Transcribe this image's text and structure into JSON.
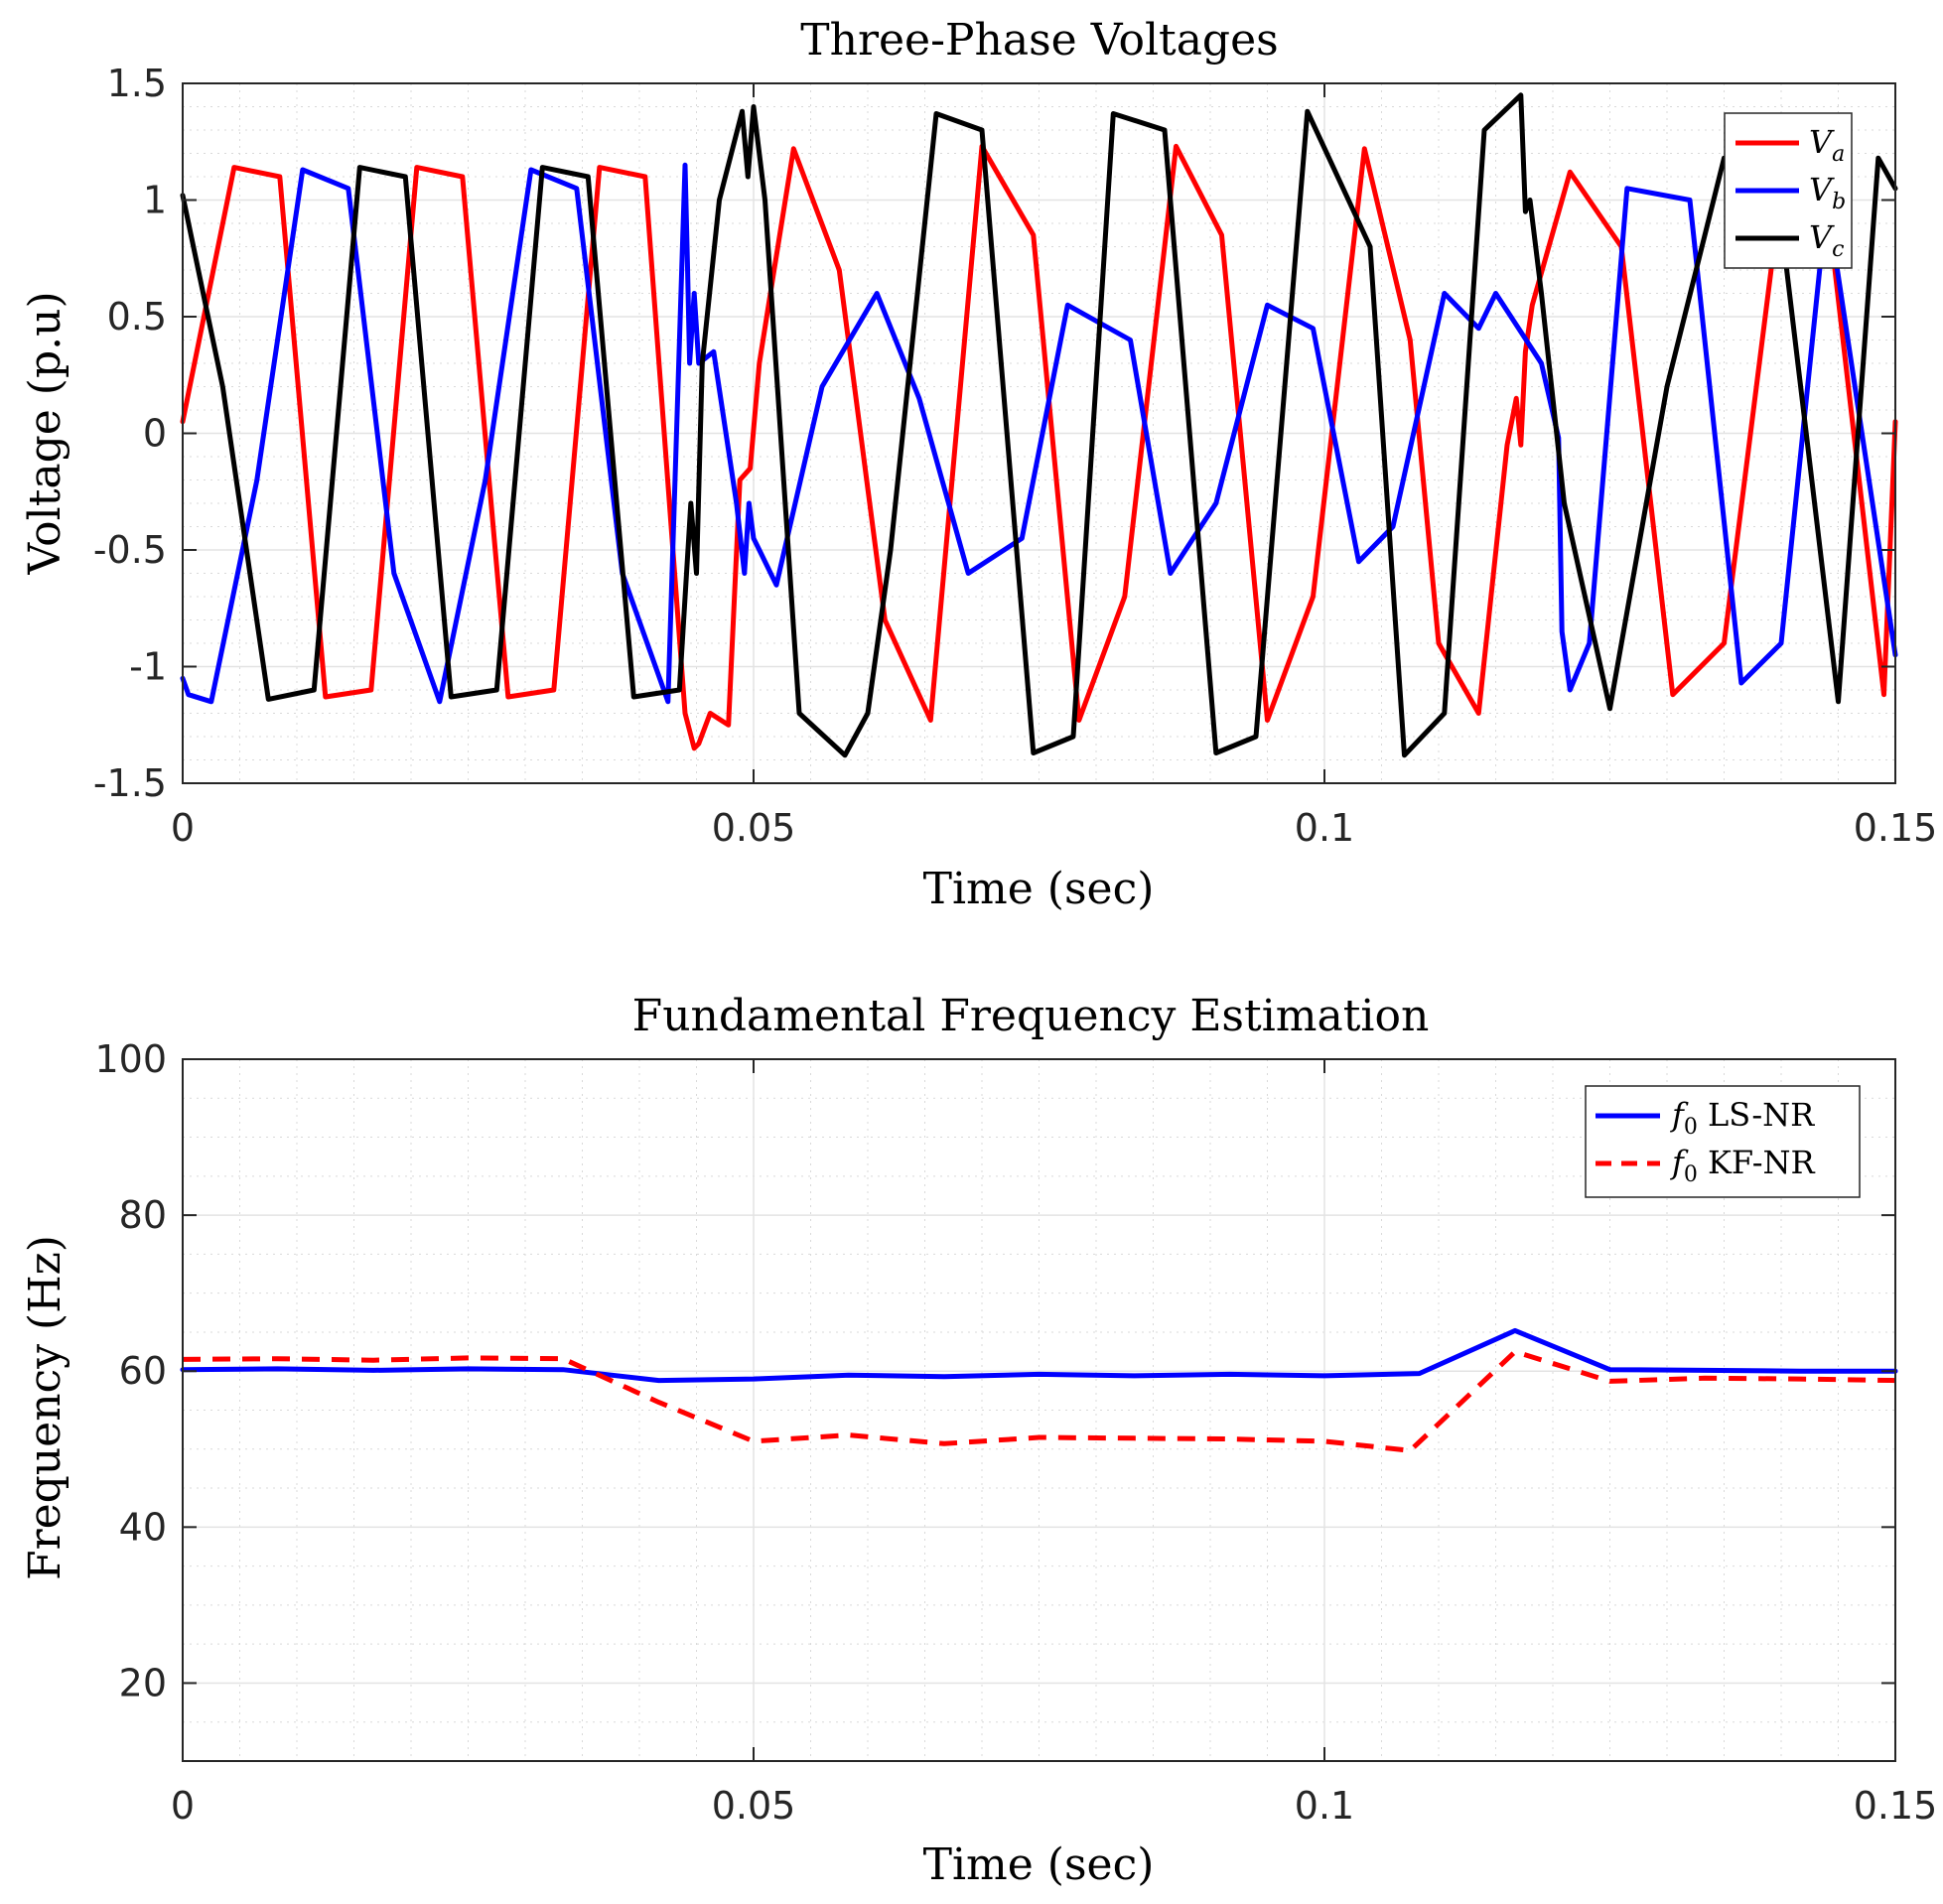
{
  "chart_data": [
    {
      "type": "line",
      "title": "Three-Phase Voltages",
      "xlabel": "Time (sec)",
      "ylabel": "Voltage (p.u)",
      "xlim": [
        0,
        0.15
      ],
      "ylim": [
        -1.5,
        1.5
      ],
      "xticks": [
        0,
        0.05,
        0.1,
        0.15
      ],
      "xtick_labels": [
        "0",
        "0.05",
        "0.1",
        "0.15"
      ],
      "yticks": [
        -1.5,
        -1,
        -0.5,
        0,
        0.5,
        1,
        1.5
      ],
      "ytick_labels": [
        "-1.5",
        "-1",
        "-0.5",
        "0",
        "0.5",
        "1",
        "1.5"
      ],
      "grid": true,
      "legend_position": "top-right",
      "series": [
        {
          "name": "V_a",
          "label_main": "V",
          "label_sub": "a",
          "color": "#ff0000",
          "style": "solid",
          "x": [
            0,
            0.0045,
            0.0085,
            0.0125,
            0.0165,
            0.0205,
            0.0245,
            0.0285,
            0.0325,
            0.0365,
            0.0405,
            0.044,
            0.0448,
            0.0452,
            0.0462,
            0.0478,
            0.0488,
            0.0497,
            0.0505,
            0.0518,
            0.0535,
            0.0575,
            0.0615,
            0.0655,
            0.07,
            0.0745,
            0.0785,
            0.0825,
            0.087,
            0.091,
            0.095,
            0.099,
            0.1035,
            0.1075,
            0.11,
            0.1135,
            0.116,
            0.1168,
            0.1172,
            0.1176,
            0.1182,
            0.1215,
            0.126,
            0.1305,
            0.135,
            0.1395,
            0.144,
            0.149,
            0.15
          ],
          "y": [
            0.05,
            1.14,
            1.1,
            -1.13,
            -1.1,
            1.14,
            1.1,
            -1.13,
            -1.1,
            1.14,
            1.1,
            -1.2,
            -1.35,
            -1.33,
            -1.2,
            -1.25,
            -0.2,
            -0.15,
            0.3,
            0.7,
            1.22,
            0.7,
            -0.8,
            -1.23,
            1.23,
            0.85,
            -1.23,
            -0.7,
            1.23,
            0.85,
            -1.23,
            -0.7,
            1.22,
            0.4,
            -0.9,
            -1.2,
            -0.05,
            0.15,
            -0.05,
            0.35,
            0.55,
            1.12,
            0.8,
            -1.12,
            -0.9,
            0.85,
            1.0,
            -1.12,
            0.05
          ]
        },
        {
          "name": "V_b",
          "label_main": "V",
          "label_sub": "b",
          "color": "#0000ff",
          "style": "solid",
          "x": [
            0,
            0.0005,
            0.0025,
            0.0065,
            0.0105,
            0.0145,
            0.0185,
            0.0225,
            0.0265,
            0.0305,
            0.0345,
            0.0385,
            0.0425,
            0.044,
            0.0442,
            0.0444,
            0.0448,
            0.0452,
            0.0465,
            0.0485,
            0.0492,
            0.0496,
            0.05,
            0.0505,
            0.052,
            0.056,
            0.0608,
            0.0645,
            0.0688,
            0.0735,
            0.0775,
            0.083,
            0.0865,
            0.0905,
            0.095,
            0.099,
            0.103,
            0.106,
            0.1105,
            0.1135,
            0.115,
            0.119,
            0.1205,
            0.1208,
            0.1215,
            0.1232,
            0.1265,
            0.132,
            0.1365,
            0.14,
            0.144,
            0.15
          ],
          "y": [
            -1.05,
            -1.12,
            -1.15,
            -0.2,
            1.13,
            1.05,
            -0.6,
            -1.15,
            -0.2,
            1.13,
            1.05,
            -0.6,
            -1.15,
            1.15,
            0.75,
            0.3,
            0.6,
            0.3,
            0.35,
            -0.3,
            -0.6,
            -0.3,
            -0.45,
            -0.5,
            -0.65,
            0.2,
            0.6,
            0.15,
            -0.6,
            -0.45,
            0.55,
            0.4,
            -0.6,
            -0.3,
            0.55,
            0.45,
            -0.55,
            -0.4,
            0.6,
            0.45,
            0.6,
            0.3,
            -0.02,
            -0.85,
            -1.1,
            -0.9,
            1.05,
            1.0,
            -1.07,
            -0.9,
            1.0,
            -0.95
          ]
        },
        {
          "name": "V_c",
          "label_main": "V",
          "label_sub": "c",
          "color": "#000000",
          "style": "solid",
          "x": [
            0,
            0.0035,
            0.0075,
            0.0115,
            0.0155,
            0.0195,
            0.0235,
            0.0275,
            0.0315,
            0.0355,
            0.0395,
            0.0435,
            0.0445,
            0.045,
            0.0455,
            0.047,
            0.049,
            0.0495,
            0.05,
            0.051,
            0.054,
            0.058,
            0.06,
            0.062,
            0.066,
            0.07,
            0.0745,
            0.078,
            0.0815,
            0.086,
            0.0905,
            0.094,
            0.0985,
            0.104,
            0.107,
            0.1105,
            0.114,
            0.1172,
            0.1176,
            0.118,
            0.119,
            0.121,
            0.125,
            0.13,
            0.135,
            0.14,
            0.145,
            0.1485,
            0.15
          ],
          "y": [
            1.02,
            0.2,
            -1.14,
            -1.1,
            1.14,
            1.1,
            -1.13,
            -1.1,
            1.14,
            1.1,
            -1.13,
            -1.1,
            -0.3,
            -0.6,
            0.3,
            1.0,
            1.38,
            1.1,
            1.4,
            1.0,
            -1.2,
            -1.38,
            -1.2,
            -0.5,
            1.37,
            1.3,
            -1.37,
            -1.3,
            1.37,
            1.3,
            -1.37,
            -1.3,
            1.38,
            0.8,
            -1.38,
            -1.2,
            1.3,
            1.45,
            0.95,
            1.0,
            0.6,
            -0.3,
            -1.18,
            0.2,
            1.18,
            0.9,
            -1.15,
            1.18,
            1.05
          ]
        }
      ]
    },
    {
      "type": "line",
      "title": "Fundamental Frequency Estimation",
      "xlabel": "Time (sec)",
      "ylabel": "Frequency (Hz)",
      "xlim": [
        0,
        0.15
      ],
      "ylim": [
        10,
        100
      ],
      "xticks": [
        0,
        0.05,
        0.1,
        0.15
      ],
      "xtick_labels": [
        "0",
        "0.05",
        "0.1",
        "0.15"
      ],
      "yticks": [
        20,
        40,
        60,
        80,
        100
      ],
      "ytick_labels": [
        "20",
        "40",
        "60",
        "80",
        "100"
      ],
      "grid": true,
      "legend_position": "top-right",
      "series": [
        {
          "name": "f0 LS-NR",
          "label_main": "f",
          "label_sub": "0",
          "label_rest": " LS-NR",
          "color": "#0000ff",
          "style": "solid",
          "x": [
            0,
            0.0083,
            0.0167,
            0.025,
            0.0333,
            0.0417,
            0.05,
            0.0583,
            0.0667,
            0.075,
            0.0833,
            0.0917,
            0.1,
            0.1083,
            0.1167,
            0.125,
            0.1333,
            0.1417,
            0.15
          ],
          "y": [
            60.2,
            60.3,
            60.1,
            60.3,
            60.2,
            58.8,
            59.0,
            59.5,
            59.3,
            59.6,
            59.4,
            59.6,
            59.4,
            59.7,
            65.2,
            60.2,
            60.1,
            60.0,
            60.0
          ]
        },
        {
          "name": "f0 KF-NR",
          "label_main": "f",
          "label_sub": "0",
          "label_rest": " KF-NR",
          "color": "#ff0000",
          "style": "dashed",
          "x": [
            0,
            0.0083,
            0.0167,
            0.025,
            0.0333,
            0.0417,
            0.05,
            0.0583,
            0.0667,
            0.075,
            0.0833,
            0.0917,
            0.1,
            0.1075,
            0.1167,
            0.125,
            0.1333,
            0.1417,
            0.15
          ],
          "y": [
            61.5,
            61.6,
            61.4,
            61.7,
            61.6,
            56.0,
            51.0,
            51.8,
            50.7,
            51.5,
            51.4,
            51.3,
            51.0,
            49.8,
            62.5,
            58.7,
            59.1,
            59.0,
            58.8
          ]
        }
      ]
    }
  ]
}
